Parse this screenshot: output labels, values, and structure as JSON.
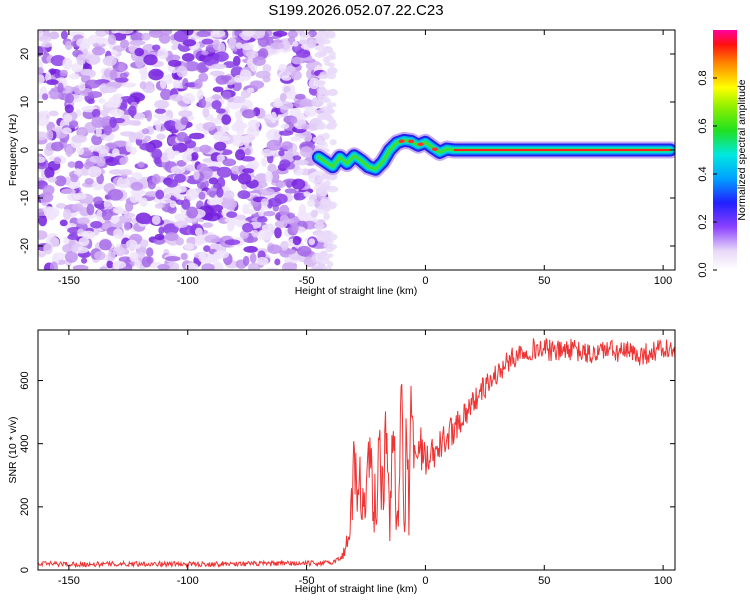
{
  "title": "S199.2026.052.07.22.C23",
  "chart_data": [
    {
      "type": "heatmap",
      "description_text": "",
      "xlabel": "Height of straight line (km)",
      "ylabel": "Frequency (Hz)",
      "xlim": [
        -163,
        105
      ],
      "ylim": [
        -25,
        25
      ],
      "xticks": [
        "-150",
        "-100",
        "-50",
        "0",
        "50",
        "100"
      ],
      "xtick_values": [
        -150,
        -100,
        -50,
        0,
        50,
        100
      ],
      "yticks": [
        "-20",
        "-10",
        "0",
        "10",
        "20"
      ],
      "ytick_values": [
        -20,
        -10,
        0,
        10,
        20
      ],
      "noise_region_x": [
        -163,
        -43
      ],
      "signal_track": {
        "x": [
          -45,
          -42,
          -39,
          -36,
          -33,
          -30,
          -27,
          -24,
          -21,
          -18,
          -15,
          -12,
          -9,
          -6,
          -3,
          0,
          3,
          6,
          9,
          12,
          20,
          40,
          60,
          80,
          100,
          103
        ],
        "y": [
          -1.5,
          -2.5,
          -3.5,
          -1.5,
          -2.8,
          -1.2,
          -2.2,
          -3.5,
          -4.0,
          -2.5,
          0.0,
          1.5,
          2.0,
          1.8,
          1.0,
          1.6,
          0.5,
          -0.5,
          0.2,
          0.0,
          0.0,
          0.0,
          0.0,
          0.0,
          0.0,
          0.0
        ]
      },
      "colorbar": {
        "label": "Normalized spectral amplitude",
        "ticks": [
          "0.0",
          "0.2",
          "0.4",
          "0.6",
          "0.8"
        ],
        "tick_values": [
          0,
          0.2,
          0.4,
          0.6,
          0.8
        ],
        "range": [
          0,
          1
        ]
      }
    },
    {
      "type": "line",
      "xlabel": "Height of straight line (km)",
      "ylabel": "SNR (10 * v/v)",
      "xlim": [
        -163,
        105
      ],
      "ylim": [
        0,
        760
      ],
      "xticks": [
        "-150",
        "-100",
        "-50",
        "0",
        "50",
        "100"
      ],
      "xtick_values": [
        -150,
        -100,
        -50,
        0,
        50,
        100
      ],
      "yticks": [
        "0",
        "200",
        "400",
        "600"
      ],
      "ytick_values": [
        0,
        200,
        400,
        600
      ],
      "color": "#ee3333",
      "series": [
        {
          "x": [
            -163,
            -140,
            -120,
            -100,
            -80,
            -60,
            -40,
            -35,
            -33,
            -31,
            -30,
            -29,
            -28,
            -27,
            -25,
            -23,
            -21,
            -19,
            -18,
            -17,
            -15,
            -13,
            -12,
            -10,
            -9,
            -8,
            -7,
            -6,
            -4,
            -2,
            0,
            5,
            10,
            15,
            20,
            25,
            30,
            35,
            40,
            45,
            50,
            55,
            60,
            65,
            70,
            75,
            80,
            85,
            90,
            95,
            100,
            105
          ],
          "y": [
            20,
            18,
            20,
            18,
            20,
            20,
            22,
            40,
            90,
            200,
            380,
            250,
            320,
            180,
            260,
            330,
            180,
            380,
            230,
            400,
            200,
            480,
            150,
            500,
            60,
            450,
            200,
            530,
            320,
            400,
            330,
            380,
            430,
            480,
            530,
            580,
            620,
            660,
            690,
            700,
            700,
            690,
            700,
            690,
            680,
            700,
            690,
            690,
            680,
            690,
            700,
            690
          ],
          "noise_amplitude": {
            "x": [
              -163,
              -36,
              -34,
              -30,
              -10,
              0,
              20,
              40,
              105
            ],
            "a": [
              8,
              8,
              25,
              120,
              140,
              60,
              40,
              35,
              35
            ]
          }
        }
      ]
    }
  ]
}
